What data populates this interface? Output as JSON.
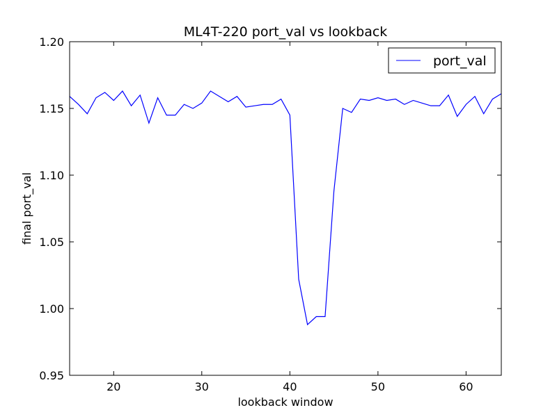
{
  "chart_data": {
    "type": "line",
    "title": "ML4T-220 port_val vs lookback",
    "xlabel": "lookback window",
    "ylabel": "final port_val",
    "xlim": [
      15,
      64
    ],
    "ylim": [
      0.95,
      1.2
    ],
    "xticks": [
      20,
      30,
      40,
      50,
      60
    ],
    "yticks": [
      "0.95",
      "1.00",
      "1.05",
      "1.10",
      "1.15",
      "1.20"
    ],
    "grid": false,
    "legend_position": "top-right",
    "series": [
      {
        "name": "port_val",
        "color": "#0000ff",
        "x": [
          15,
          16,
          17,
          18,
          19,
          20,
          21,
          22,
          23,
          24,
          25,
          26,
          27,
          28,
          29,
          30,
          31,
          32,
          33,
          34,
          35,
          36,
          37,
          38,
          39,
          40,
          41,
          42,
          43,
          44,
          45,
          46,
          47,
          48,
          49,
          50,
          51,
          52,
          53,
          54,
          55,
          56,
          57,
          58,
          59,
          60,
          61,
          62,
          63,
          64
        ],
        "values": [
          1.159,
          1.153,
          1.146,
          1.158,
          1.162,
          1.156,
          1.163,
          1.152,
          1.16,
          1.139,
          1.158,
          1.145,
          1.145,
          1.153,
          1.15,
          1.154,
          1.163,
          1.159,
          1.155,
          1.159,
          1.151,
          1.152,
          1.153,
          1.153,
          1.157,
          1.145,
          1.022,
          0.988,
          0.994,
          0.994,
          1.088,
          1.15,
          1.147,
          1.157,
          1.156,
          1.158,
          1.156,
          1.157,
          1.153,
          1.156,
          1.154,
          1.152,
          1.152,
          1.16,
          1.144,
          1.153,
          1.159,
          1.146,
          1.157,
          1.161
        ]
      }
    ]
  }
}
